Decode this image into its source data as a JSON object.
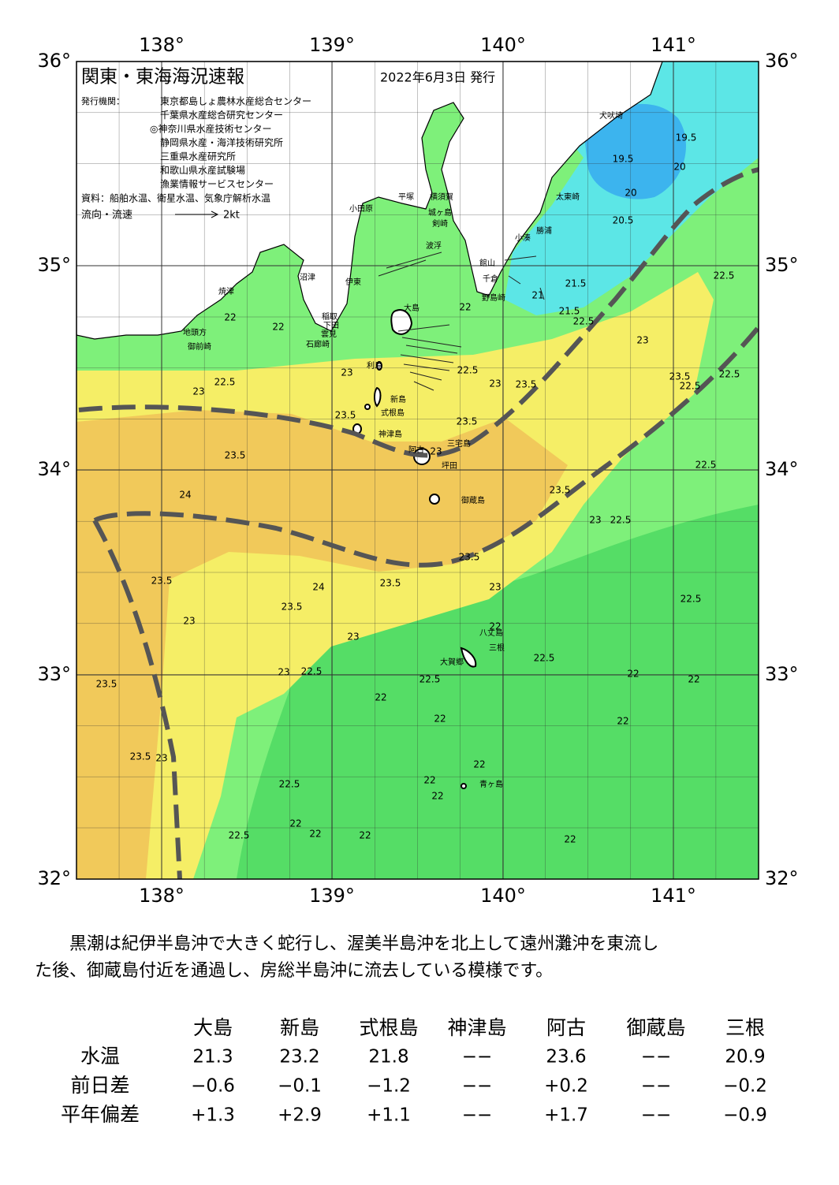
{
  "map": {
    "title": "関東・東海海況速報",
    "date": "2022年6月3日 発行",
    "issuer_label": "発行機関：",
    "issuers": [
      "東京都島しょ農林水産総合センター",
      "千葉県水産総合研究センター",
      "◎神奈川県水産技術センター",
      "静岡県水産・海洋技術研究所",
      "三重県水産研究所",
      "和歌山県水産試験場",
      "漁業情報サービスセンター"
    ],
    "source": "資料：船舶水温、衛星水温、気象庁解析水温",
    "legend": "流向・流速",
    "legend_speed": "2kt",
    "lon_labels": [
      "138°",
      "139°",
      "140°",
      "141°"
    ],
    "lat_labels": [
      "36°",
      "35°",
      "34°",
      "33°",
      "32°"
    ],
    "place_names": [
      "大島",
      "利島",
      "新島",
      "式根島",
      "神津島",
      "三宅島",
      "阿古",
      "坪田",
      "御蔵島",
      "八丈島",
      "三根",
      "大賀郷",
      "青ヶ島",
      "小田原",
      "平塚",
      "横須賀",
      "城ヶ島",
      "剣崎",
      "館山",
      "千倉",
      "野島崎",
      "小湊",
      "勝浦",
      "太東崎",
      "犬吠埼",
      "伊東",
      "稲取",
      "下田",
      "石廊崎",
      "雲見",
      "沼津",
      "焼津",
      "地頭方",
      "御前崎",
      "波浮"
    ],
    "contour_labels": [
      22.5,
      23,
      23.5,
      22.5,
      22.5,
      22.5,
      21.5,
      21.5,
      21,
      20.5,
      19.5,
      19.5,
      20,
      20,
      22.5,
      23.5,
      23,
      22.5,
      23.5,
      23,
      22.5,
      22,
      23.5,
      23,
      23.5,
      23,
      22.5,
      23,
      22,
      22,
      23.5,
      24,
      23.5,
      24,
      23.5,
      23.5,
      23.5,
      23,
      23,
      23,
      22,
      22.5,
      22.5,
      22,
      22,
      23,
      22.5,
      22.5,
      22,
      22,
      22,
      23.5,
      23.5,
      23,
      22.5,
      22,
      22,
      22,
      22.5,
      22,
      22,
      22,
      22
    ]
  },
  "description": [
    "　黒潮は紀伊半島沖で大きく蛇行し、渥美半島沖を北上して遠州灘沖を東流し",
    "た後、御蔵島付近を通過し、房総半島沖に流去している模様です。"
  ],
  "table": {
    "header": [
      "大島",
      "新島",
      "式根島",
      "神津島",
      "阿古",
      "御蔵島",
      "三根"
    ],
    "rows": [
      {
        "label": "水温",
        "values": [
          "21.3",
          "23.2",
          "21.8",
          "−−",
          "23.6",
          "−−",
          "20.9"
        ]
      },
      {
        "label": "前日差",
        "values": [
          "−0.6",
          "−0.1",
          "−1.2",
          "−−",
          "+0.2",
          "−−",
          "−0.2"
        ]
      },
      {
        "label": "平年偏差",
        "values": [
          "+1.3",
          "+2.9",
          "+1.1",
          "−−",
          "+1.7",
          "−−",
          "−0.9"
        ]
      }
    ]
  }
}
